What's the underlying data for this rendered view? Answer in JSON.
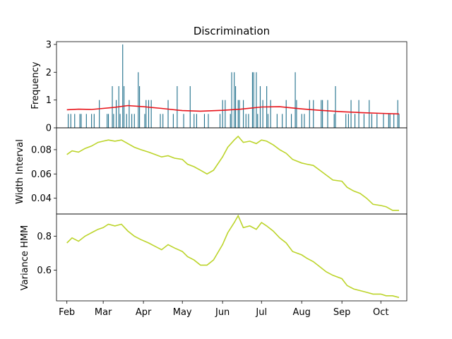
{
  "chart_data": [
    {
      "type": "bar+line",
      "title": "Discrimination",
      "ylabel": "Frequency",
      "ylim": [
        0,
        3.1
      ],
      "yticks": [
        "0",
        "1",
        "2",
        "3"
      ],
      "bar_color": "#1f6f8b",
      "line_color": "#e8141b",
      "bars": [
        {
          "x": "2023-02-02",
          "y": 0.5
        },
        {
          "x": "2023-02-04",
          "y": 0.5
        },
        {
          "x": "2023-02-07",
          "y": 0.5
        },
        {
          "x": "2023-02-11",
          "y": 0.5
        },
        {
          "x": "2023-02-12",
          "y": 0.5
        },
        {
          "x": "2023-02-16",
          "y": 0.5
        },
        {
          "x": "2023-02-20",
          "y": 0.5
        },
        {
          "x": "2023-02-22",
          "y": 0.5
        },
        {
          "x": "2023-02-26",
          "y": 1.0
        },
        {
          "x": "2023-03-04",
          "y": 0.5
        },
        {
          "x": "2023-03-05",
          "y": 0.5
        },
        {
          "x": "2023-03-08",
          "y": 1.5
        },
        {
          "x": "2023-03-09",
          "y": 0.5
        },
        {
          "x": "2023-03-11",
          "y": 1.0
        },
        {
          "x": "2023-03-13",
          "y": 1.5
        },
        {
          "x": "2023-03-14",
          "y": 0.5
        },
        {
          "x": "2023-03-16",
          "y": 3.0
        },
        {
          "x": "2023-03-17",
          "y": 1.5
        },
        {
          "x": "2023-03-19",
          "y": 0.5
        },
        {
          "x": "2023-03-21",
          "y": 1.0
        },
        {
          "x": "2023-03-23",
          "y": 0.5
        },
        {
          "x": "2023-03-25",
          "y": 0.5
        },
        {
          "x": "2023-03-28",
          "y": 2.0
        },
        {
          "x": "2023-03-29",
          "y": 1.5
        },
        {
          "x": "2023-04-02",
          "y": 0.5
        },
        {
          "x": "2023-04-03",
          "y": 1.0
        },
        {
          "x": "2023-04-05",
          "y": 1.0
        },
        {
          "x": "2023-04-07",
          "y": 1.0
        },
        {
          "x": "2023-04-14",
          "y": 0.5
        },
        {
          "x": "2023-04-16",
          "y": 0.5
        },
        {
          "x": "2023-04-20",
          "y": 1.0
        },
        {
          "x": "2023-04-24",
          "y": 0.5
        },
        {
          "x": "2023-04-27",
          "y": 1.5
        },
        {
          "x": "2023-05-02",
          "y": 0.5
        },
        {
          "x": "2023-05-07",
          "y": 1.5
        },
        {
          "x": "2023-05-10",
          "y": 0.5
        },
        {
          "x": "2023-05-12",
          "y": 0.5
        },
        {
          "x": "2023-05-18",
          "y": 0.5
        },
        {
          "x": "2023-05-21",
          "y": 0.5
        },
        {
          "x": "2023-05-30",
          "y": 0.5
        },
        {
          "x": "2023-06-01",
          "y": 1.0
        },
        {
          "x": "2023-06-03",
          "y": 1.0
        },
        {
          "x": "2023-06-07",
          "y": 0.5
        },
        {
          "x": "2023-06-08",
          "y": 2.0
        },
        {
          "x": "2023-06-10",
          "y": 2.0
        },
        {
          "x": "2023-06-11",
          "y": 1.5
        },
        {
          "x": "2023-06-13",
          "y": 1.0
        },
        {
          "x": "2023-06-14",
          "y": 1.0
        },
        {
          "x": "2023-06-17",
          "y": 1.0
        },
        {
          "x": "2023-06-19",
          "y": 0.5
        },
        {
          "x": "2023-06-21",
          "y": 0.5
        },
        {
          "x": "2023-06-24",
          "y": 2.0
        },
        {
          "x": "2023-06-25",
          "y": 2.0
        },
        {
          "x": "2023-06-27",
          "y": 2.0
        },
        {
          "x": "2023-06-28",
          "y": 0.5
        },
        {
          "x": "2023-06-30",
          "y": 1.5
        },
        {
          "x": "2023-07-02",
          "y": 1.0
        },
        {
          "x": "2023-07-05",
          "y": 1.5
        },
        {
          "x": "2023-07-06",
          "y": 0.5
        },
        {
          "x": "2023-07-08",
          "y": 1.0
        },
        {
          "x": "2023-07-13",
          "y": 0.5
        },
        {
          "x": "2023-07-17",
          "y": 0.5
        },
        {
          "x": "2023-07-20",
          "y": 1.0
        },
        {
          "x": "2023-07-24",
          "y": 0.5
        },
        {
          "x": "2023-07-27",
          "y": 2.0
        },
        {
          "x": "2023-07-28",
          "y": 1.0
        },
        {
          "x": "2023-08-01",
          "y": 0.5
        },
        {
          "x": "2023-08-03",
          "y": 0.5
        },
        {
          "x": "2023-08-07",
          "y": 1.0
        },
        {
          "x": "2023-08-10",
          "y": 1.0
        },
        {
          "x": "2023-08-16",
          "y": 1.0
        },
        {
          "x": "2023-08-17",
          "y": 1.0
        },
        {
          "x": "2023-08-21",
          "y": 1.0
        },
        {
          "x": "2023-08-26",
          "y": 0.5
        },
        {
          "x": "2023-08-27",
          "y": 1.5
        },
        {
          "x": "2023-09-04",
          "y": 0.5
        },
        {
          "x": "2023-09-06",
          "y": 0.5
        },
        {
          "x": "2023-09-08",
          "y": 1.0
        },
        {
          "x": "2023-09-11",
          "y": 0.5
        },
        {
          "x": "2023-09-14",
          "y": 1.0
        },
        {
          "x": "2023-09-18",
          "y": 0.5
        },
        {
          "x": "2023-09-22",
          "y": 1.0
        },
        {
          "x": "2023-09-24",
          "y": 0.5
        },
        {
          "x": "2023-09-28",
          "y": 0.5
        },
        {
          "x": "2023-10-03",
          "y": 0.5
        },
        {
          "x": "2023-10-07",
          "y": 0.5
        },
        {
          "x": "2023-10-08",
          "y": 0.5
        },
        {
          "x": "2023-10-11",
          "y": 0.5
        },
        {
          "x": "2023-10-14",
          "y": 1.0
        },
        {
          "x": "2023-10-15",
          "y": 0.5
        }
      ],
      "trend_line": {
        "x": [
          "2023-02-01",
          "2023-02-10",
          "2023-02-20",
          "2023-03-01",
          "2023-03-10",
          "2023-03-20",
          "2023-04-01",
          "2023-04-15",
          "2023-05-01",
          "2023-05-15",
          "2023-06-01",
          "2023-06-15",
          "2023-07-01",
          "2023-07-15",
          "2023-08-01",
          "2023-08-15",
          "2023-09-01",
          "2023-09-15",
          "2023-10-01",
          "2023-10-15"
        ],
        "y": [
          0.65,
          0.67,
          0.66,
          0.7,
          0.74,
          0.8,
          0.76,
          0.7,
          0.62,
          0.6,
          0.63,
          0.67,
          0.75,
          0.76,
          0.68,
          0.63,
          0.58,
          0.55,
          0.52,
          0.5
        ]
      }
    },
    {
      "type": "line",
      "ylabel": "Width Interval",
      "ylim": [
        0.027,
        0.098
      ],
      "yticks": [
        "0.04",
        "0.06",
        "0.08"
      ],
      "line_color": "#bcd42a",
      "x": [
        "2023-02-01",
        "2023-02-05",
        "2023-02-10",
        "2023-02-15",
        "2023-02-20",
        "2023-02-25",
        "2023-03-01",
        "2023-03-05",
        "2023-03-10",
        "2023-03-15",
        "2023-03-20",
        "2023-03-25",
        "2023-03-30",
        "2023-04-05",
        "2023-04-10",
        "2023-04-15",
        "2023-04-20",
        "2023-04-25",
        "2023-05-01",
        "2023-05-05",
        "2023-05-10",
        "2023-05-15",
        "2023-05-20",
        "2023-05-25",
        "2023-06-01",
        "2023-06-05",
        "2023-06-10",
        "2023-06-13",
        "2023-06-17",
        "2023-06-22",
        "2023-06-27",
        "2023-07-01",
        "2023-07-05",
        "2023-07-10",
        "2023-07-15",
        "2023-07-20",
        "2023-07-25",
        "2023-08-01",
        "2023-08-05",
        "2023-08-10",
        "2023-08-15",
        "2023-08-20",
        "2023-08-25",
        "2023-09-01",
        "2023-09-05",
        "2023-09-10",
        "2023-09-15",
        "2023-09-20",
        "2023-09-25",
        "2023-10-01",
        "2023-10-05",
        "2023-10-10",
        "2023-10-15"
      ],
      "y": [
        0.076,
        0.079,
        0.078,
        0.081,
        0.083,
        0.086,
        0.087,
        0.088,
        0.087,
        0.088,
        0.085,
        0.082,
        0.08,
        0.078,
        0.076,
        0.074,
        0.075,
        0.073,
        0.072,
        0.068,
        0.066,
        0.063,
        0.06,
        0.063,
        0.074,
        0.082,
        0.088,
        0.091,
        0.086,
        0.087,
        0.085,
        0.088,
        0.087,
        0.084,
        0.08,
        0.077,
        0.072,
        0.069,
        0.068,
        0.067,
        0.063,
        0.059,
        0.055,
        0.054,
        0.049,
        0.046,
        0.044,
        0.04,
        0.035,
        0.034,
        0.033,
        0.03,
        0.03
      ]
    },
    {
      "type": "line",
      "ylabel": "Variance HMM",
      "ylim": [
        0.42,
        0.93
      ],
      "yticks": [
        "0.6",
        "0.8"
      ],
      "line_color": "#bcd42a",
      "xticks": [
        "Feb",
        "Mar",
        "Apr",
        "May",
        "Jun",
        "Jul",
        "Aug",
        "Sep",
        "Oct"
      ],
      "x": [
        "2023-02-01",
        "2023-02-05",
        "2023-02-10",
        "2023-02-15",
        "2023-02-20",
        "2023-02-25",
        "2023-03-01",
        "2023-03-05",
        "2023-03-10",
        "2023-03-15",
        "2023-03-20",
        "2023-03-25",
        "2023-03-30",
        "2023-04-05",
        "2023-04-10",
        "2023-04-15",
        "2023-04-20",
        "2023-04-25",
        "2023-05-01",
        "2023-05-05",
        "2023-05-10",
        "2023-05-15",
        "2023-05-20",
        "2023-05-25",
        "2023-06-01",
        "2023-06-05",
        "2023-06-10",
        "2023-06-13",
        "2023-06-17",
        "2023-06-22",
        "2023-06-27",
        "2023-07-01",
        "2023-07-05",
        "2023-07-10",
        "2023-07-15",
        "2023-07-20",
        "2023-07-25",
        "2023-08-01",
        "2023-08-05",
        "2023-08-10",
        "2023-08-15",
        "2023-08-20",
        "2023-08-25",
        "2023-09-01",
        "2023-09-05",
        "2023-09-10",
        "2023-09-15",
        "2023-09-20",
        "2023-09-25",
        "2023-10-01",
        "2023-10-05",
        "2023-10-10",
        "2023-10-15"
      ],
      "y": [
        0.76,
        0.79,
        0.77,
        0.8,
        0.82,
        0.84,
        0.85,
        0.87,
        0.86,
        0.87,
        0.83,
        0.8,
        0.78,
        0.76,
        0.74,
        0.72,
        0.75,
        0.73,
        0.71,
        0.68,
        0.66,
        0.63,
        0.63,
        0.66,
        0.75,
        0.82,
        0.88,
        0.92,
        0.85,
        0.86,
        0.84,
        0.88,
        0.86,
        0.83,
        0.79,
        0.76,
        0.71,
        0.69,
        0.67,
        0.65,
        0.62,
        0.59,
        0.57,
        0.55,
        0.51,
        0.49,
        0.48,
        0.47,
        0.46,
        0.46,
        0.45,
        0.45,
        0.44
      ]
    }
  ]
}
